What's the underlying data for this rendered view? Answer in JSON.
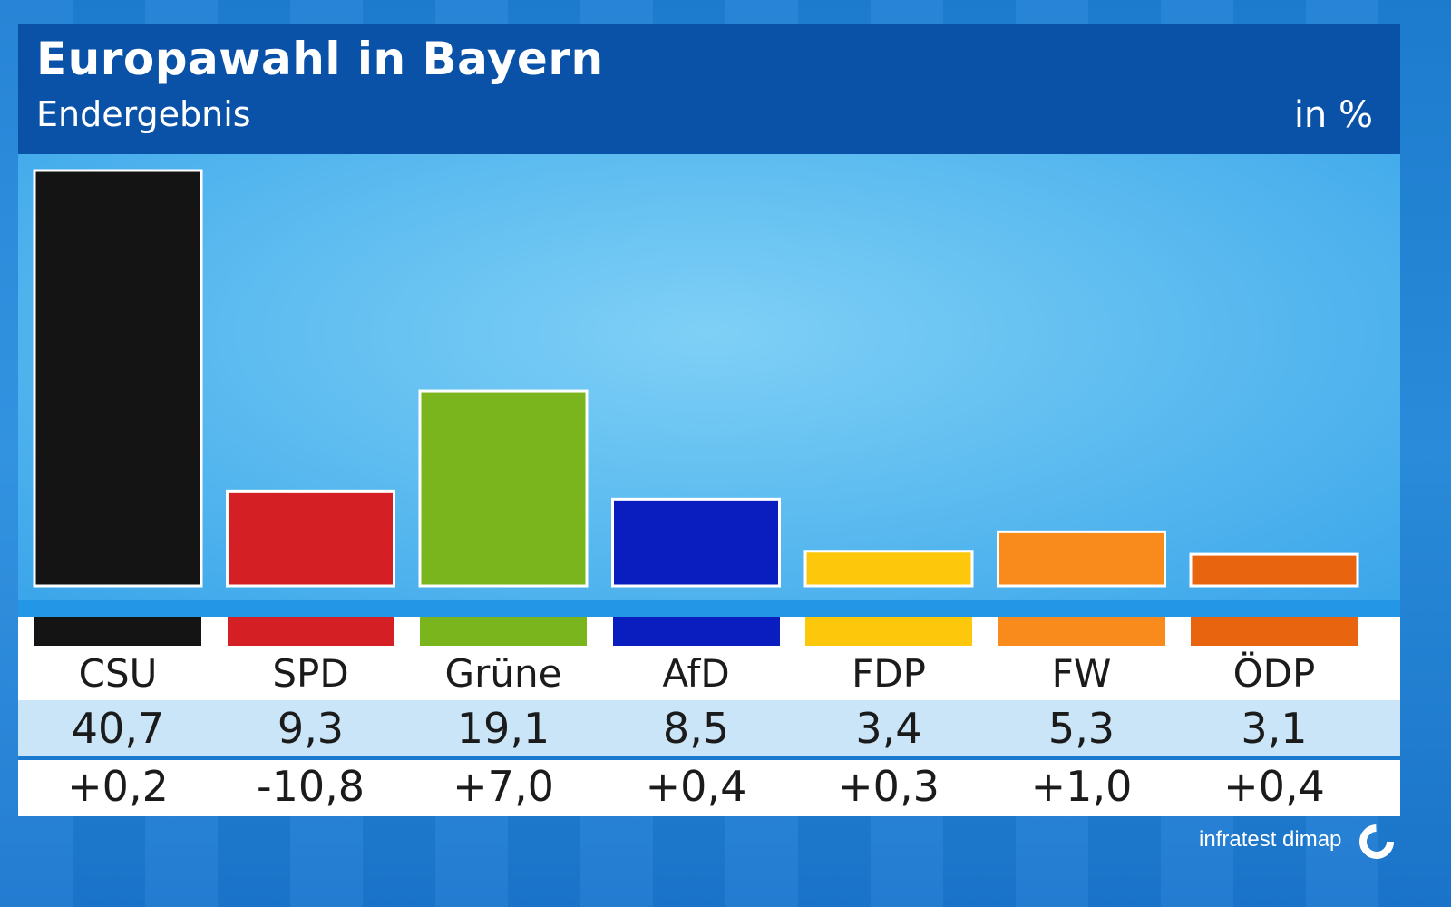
{
  "header": {
    "title": "Europawahl in Bayern",
    "subtitle": "Endergebnis",
    "unit": "in %"
  },
  "chart_data": {
    "type": "bar",
    "title": "Europawahl in Bayern",
    "subtitle": "Endergebnis",
    "unit": "in %",
    "categories": [
      "CSU",
      "SPD",
      "Grüne",
      "AfD",
      "FDP",
      "FW",
      "ÖDP"
    ],
    "values": [
      40.7,
      9.3,
      19.1,
      8.5,
      3.4,
      5.3,
      3.1
    ],
    "value_labels": [
      "40,7",
      "9,3",
      "19,1",
      "8,5",
      "3,4",
      "5,3",
      "3,1"
    ],
    "change_labels": [
      "+0,2",
      "-10,8",
      "+7,0",
      "+0,4",
      "+0,3",
      "+1,0",
      "+0,4"
    ],
    "colors": [
      "#141414",
      "#d41f24",
      "#7ab51d",
      "#0a1dbf",
      "#fdc80c",
      "#f98b1c",
      "#e8640e"
    ],
    "ylim": [
      0,
      40.7
    ],
    "grid": false,
    "legend": "none"
  },
  "source": "infratest dimap"
}
